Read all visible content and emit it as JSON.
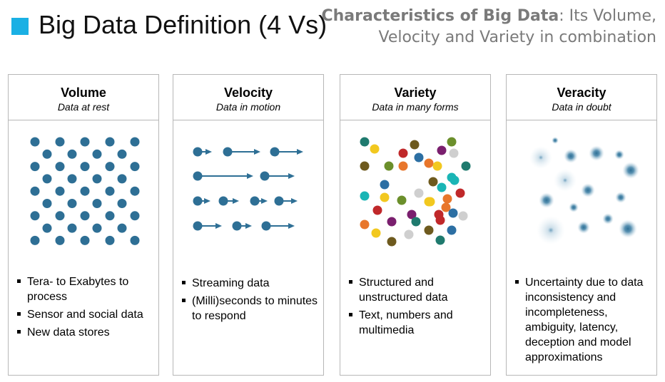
{
  "header": {
    "title": "Big Data Definition (4 Vs)",
    "subtitle_bold": "Characteristics of Big Data",
    "subtitle_rest_line1": ": Its Volume,",
    "subtitle_line2": "Velocity and Variety in combination"
  },
  "colors": {
    "accent_square": "#1ab0e4",
    "dot_blue": "#2e6f95",
    "panel_border": "#b7b7b7",
    "subtitle_gray": "#7a7a7a",
    "variety_palette": [
      "#1f7a6e",
      "#f2c81f",
      "#6e5a1e",
      "#c0282a",
      "#2c6fa3",
      "#6b8f2b",
      "#7a1f6e",
      "#1ab5b5",
      "#e8762b",
      "#cfcfcf"
    ]
  },
  "panels": [
    {
      "name": "Volume",
      "description": "Data at rest",
      "illustration": "grid-of-dots",
      "bullets": [
        "Tera- to Exabytes to process",
        "Sensor and social data",
        "New data stores"
      ]
    },
    {
      "name": "Velocity",
      "description": "Data in motion",
      "illustration": "dots-with-arrows",
      "bullets": [
        "Streaming data",
        "(Milli)seconds to minutes to respond"
      ]
    },
    {
      "name": "Variety",
      "description": "Data in many forms",
      "illustration": "multicolored-dots",
      "bullets": [
        "Structured and unstructured data",
        "Text, numbers and multimedia"
      ]
    },
    {
      "name": "Veracity",
      "description": "Data in doubt",
      "illustration": "blurred-dots",
      "bullets": [
        "Uncertainty due to data inconsistency and incompleteness, ambiguity, latency, deception and model approximations"
      ]
    }
  ]
}
